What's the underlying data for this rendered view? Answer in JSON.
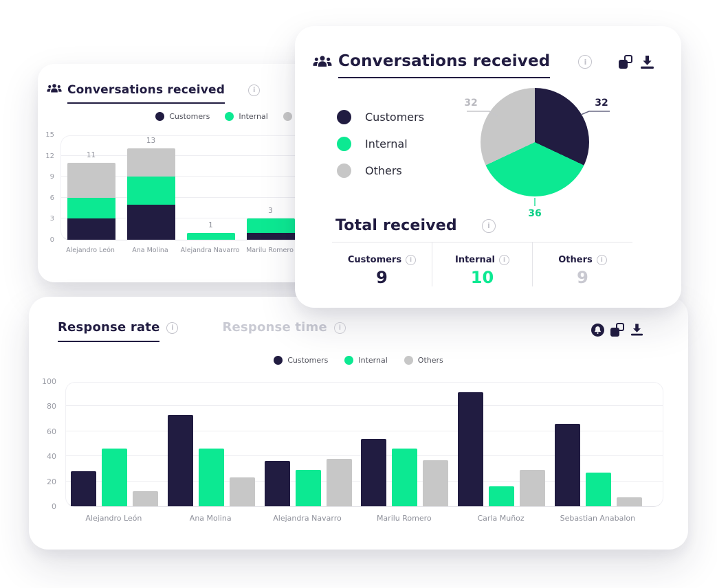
{
  "colors": {
    "navy": "#211c41",
    "green": "#0ce992",
    "gray": "#c7c7c7",
    "muted_value": "#c9c9d1",
    "axis_text": "#9b9da6"
  },
  "icons": {
    "info": "i"
  },
  "left_card": {
    "title": "Conversations received",
    "legend": [
      "Customers",
      "Internal",
      "Others"
    ]
  },
  "right_card": {
    "title": "Conversations received",
    "legend": [
      "Customers",
      "Internal",
      "Others"
    ],
    "total": {
      "title": "Total received",
      "columns": [
        {
          "label": "Customers",
          "value": "9"
        },
        {
          "label": "Internal",
          "value": "10"
        },
        {
          "label": "Others",
          "value": "9"
        }
      ]
    }
  },
  "bottom_card": {
    "tabs": [
      {
        "label": "Response rate",
        "active": true
      },
      {
        "label": "Response time",
        "active": false
      }
    ],
    "legend": [
      "Customers",
      "Internal",
      "Others"
    ]
  },
  "chart_data": [
    {
      "id": "conversations-received-by-agent",
      "type": "bar",
      "stacked": true,
      "title": "Conversations received",
      "categories": [
        "Alejandro León",
        "Ana Molina",
        "Alejandra Navarro",
        "Marilu Romero"
      ],
      "series": [
        {
          "name": "Customers",
          "color": "#211c41",
          "values": [
            3,
            5,
            0,
            1
          ]
        },
        {
          "name": "Internal",
          "color": "#0ce992",
          "values": [
            3,
            4,
            1,
            2
          ]
        },
        {
          "name": "Others",
          "color": "#c7c7c7",
          "values": [
            5,
            4,
            0,
            0
          ]
        }
      ],
      "totals": [
        11,
        13,
        1,
        3
      ],
      "ylim": [
        0,
        15
      ],
      "yticks": [
        0,
        3,
        6,
        9,
        12,
        15
      ],
      "legend_position": "top",
      "grid": true
    },
    {
      "id": "conversations-received-share",
      "type": "pie",
      "title": "Conversations received",
      "labels": [
        "Customers",
        "Internal",
        "Others"
      ],
      "values": [
        32,
        36,
        32
      ],
      "colors": [
        "#211c41",
        "#0ce992",
        "#c7c7c7"
      ],
      "legend_position": "left"
    },
    {
      "id": "response-rate",
      "type": "bar",
      "stacked": false,
      "title": "Response rate",
      "categories": [
        "Alejandro León",
        "Ana Molina",
        "Alejandra Navarro",
        "Marilu Romero",
        "Carla Muñoz",
        "Sebastian Anabalon"
      ],
      "series": [
        {
          "name": "Customers",
          "color": "#211c41",
          "values": [
            28,
            73,
            36,
            54,
            91,
            66
          ]
        },
        {
          "name": "Internal",
          "color": "#0ce992",
          "values": [
            46,
            46,
            29,
            46,
            16,
            27
          ]
        },
        {
          "name": "Others",
          "color": "#c7c7c7",
          "values": [
            12,
            23,
            38,
            37,
            29,
            7
          ]
        }
      ],
      "ylim": [
        0,
        100
      ],
      "yticks": [
        0,
        20,
        40,
        60,
        80,
        100
      ],
      "legend_position": "top",
      "grid": true
    }
  ]
}
